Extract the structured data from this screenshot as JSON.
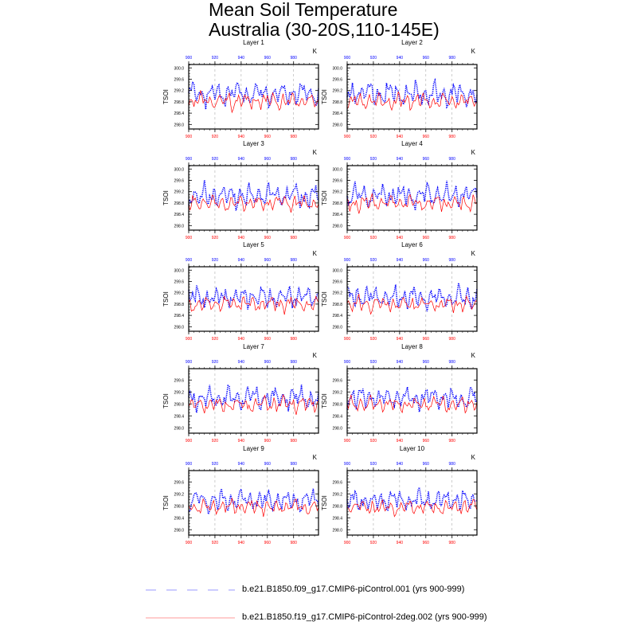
{
  "title": {
    "line1": "Mean Soil Temperature",
    "line2": "Australia (30-20S,110-145E)"
  },
  "colors": {
    "series_f09": "#0000ff",
    "series_f19": "#ff0000",
    "legend_f09": "#9999ff",
    "legend_f19": "#ff9999",
    "grid": "#aaaaaa"
  },
  "legend": [
    {
      "name": "series-f09",
      "label": "b.e21.B1850.f09_g17.CMIP6-piControl.001 (yrs 900-999)",
      "style": "dashed"
    },
    {
      "name": "series-f19",
      "label": "b.e21.B1850.f19_g17.CMIP6-piControl-2deg.002 (yrs 900-999)",
      "style": "solid"
    }
  ],
  "chart_data": [
    {
      "type": "line",
      "title": "Layer 1",
      "ylabel": "TSOI",
      "units": "K",
      "x_range": [
        900,
        999
      ],
      "ylim": [
        297.84,
        300.12
      ],
      "yticks": [
        298.0,
        298.4,
        298.8,
        299.2,
        299.6,
        300.0
      ],
      "yticklabels": [
        "298.0",
        "298.4",
        "298.8",
        "299.2",
        "299.6",
        "300.0"
      ],
      "xticks": [
        900,
        920,
        940,
        960,
        980
      ],
      "xticklabels": [
        "900",
        "920",
        "940",
        "960",
        "980"
      ],
      "series": [
        {
          "name": "b.e21.B1850.f09_g17.CMIP6-piControl.001",
          "mean": 299.08,
          "amp": 0.48,
          "seed": 11
        },
        {
          "name": "b.e21.B1850.f19_g17.CMIP6-piControl-2deg.002",
          "mean": 298.82,
          "amp": 0.34,
          "seed": 23
        }
      ]
    },
    {
      "type": "line",
      "title": "Layer 2",
      "ylabel": "TSOI",
      "units": "K",
      "x_range": [
        900,
        999
      ],
      "ylim": [
        297.84,
        300.12
      ],
      "yticks": [
        298.0,
        298.4,
        298.8,
        299.2,
        299.6,
        300.0
      ],
      "yticklabels": [
        "298.0",
        "298.4",
        "298.8",
        "299.2",
        "299.6",
        "300.0"
      ],
      "xticks": [
        900,
        920,
        940,
        960,
        980
      ],
      "xticklabels": [
        "900",
        "920",
        "940",
        "960",
        "980"
      ],
      "series": [
        {
          "name": "b.e21.B1850.f09_g17.CMIP6-piControl.001",
          "mean": 299.08,
          "amp": 0.48,
          "seed": 12
        },
        {
          "name": "b.e21.B1850.f19_g17.CMIP6-piControl-2deg.002",
          "mean": 298.82,
          "amp": 0.34,
          "seed": 24
        }
      ]
    },
    {
      "type": "line",
      "title": "Layer 3",
      "ylabel": "TSOI",
      "units": "K",
      "x_range": [
        900,
        999
      ],
      "ylim": [
        297.84,
        300.12
      ],
      "yticks": [
        298.0,
        298.4,
        298.8,
        299.2,
        299.6,
        300.0
      ],
      "yticklabels": [
        "298.0",
        "298.4",
        "298.8",
        "299.2",
        "299.6",
        "300.0"
      ],
      "xticks": [
        900,
        920,
        940,
        960,
        980
      ],
      "xticklabels": [
        "900",
        "920",
        "940",
        "960",
        "980"
      ],
      "series": [
        {
          "name": "b.e21.B1850.f09_g17.CMIP6-piControl.001",
          "mean": 299.06,
          "amp": 0.46,
          "seed": 13
        },
        {
          "name": "b.e21.B1850.f19_g17.CMIP6-piControl-2deg.002",
          "mean": 298.8,
          "amp": 0.33,
          "seed": 25
        }
      ]
    },
    {
      "type": "line",
      "title": "Layer 4",
      "ylabel": "TSOI",
      "units": "K",
      "x_range": [
        900,
        999
      ],
      "ylim": [
        297.84,
        300.12
      ],
      "yticks": [
        298.0,
        298.4,
        298.8,
        299.2,
        299.6,
        300.0
      ],
      "yticklabels": [
        "298.0",
        "298.4",
        "298.8",
        "299.2",
        "299.6",
        "300.0"
      ],
      "xticks": [
        900,
        920,
        940,
        960,
        980
      ],
      "xticklabels": [
        "900",
        "920",
        "940",
        "960",
        "980"
      ],
      "series": [
        {
          "name": "b.e21.B1850.f09_g17.CMIP6-piControl.001",
          "mean": 299.06,
          "amp": 0.46,
          "seed": 14
        },
        {
          "name": "b.e21.B1850.f19_g17.CMIP6-piControl-2deg.002",
          "mean": 298.8,
          "amp": 0.33,
          "seed": 26
        }
      ]
    },
    {
      "type": "line",
      "title": "Layer 5",
      "ylabel": "TSOI",
      "units": "K",
      "x_range": [
        900,
        999
      ],
      "ylim": [
        297.84,
        300.12
      ],
      "yticks": [
        298.0,
        298.4,
        298.8,
        299.2,
        299.6,
        300.0
      ],
      "yticklabels": [
        "298.0",
        "298.4",
        "298.8",
        "299.2",
        "299.6",
        "300.0"
      ],
      "xticks": [
        900,
        920,
        940,
        960,
        980
      ],
      "xticklabels": [
        "900",
        "920",
        "940",
        "960",
        "980"
      ],
      "series": [
        {
          "name": "b.e21.B1850.f09_g17.CMIP6-piControl.001",
          "mean": 299.04,
          "amp": 0.44,
          "seed": 15
        },
        {
          "name": "b.e21.B1850.f19_g17.CMIP6-piControl-2deg.002",
          "mean": 298.8,
          "amp": 0.32,
          "seed": 27
        }
      ]
    },
    {
      "type": "line",
      "title": "Layer 6",
      "ylabel": "TSOI",
      "units": "K",
      "x_range": [
        900,
        999
      ],
      "ylim": [
        297.84,
        300.12
      ],
      "yticks": [
        298.0,
        298.4,
        298.8,
        299.2,
        299.6,
        300.0
      ],
      "yticklabels": [
        "298.0",
        "298.4",
        "298.8",
        "299.2",
        "299.6",
        "300.0"
      ],
      "xticks": [
        900,
        920,
        940,
        960,
        980
      ],
      "xticklabels": [
        "900",
        "920",
        "940",
        "960",
        "980"
      ],
      "series": [
        {
          "name": "b.e21.B1850.f09_g17.CMIP6-piControl.001",
          "mean": 299.04,
          "amp": 0.44,
          "seed": 16
        },
        {
          "name": "b.e21.B1850.f19_g17.CMIP6-piControl-2deg.002",
          "mean": 298.8,
          "amp": 0.32,
          "seed": 28
        }
      ]
    },
    {
      "type": "line",
      "title": "Layer 7",
      "ylabel": "TSOI",
      "units": "K",
      "x_range": [
        900,
        999
      ],
      "ylim": [
        297.82,
        299.98
      ],
      "yticks": [
        298.0,
        298.4,
        298.8,
        299.2,
        299.6
      ],
      "yticklabels": [
        "298.0",
        "298.4",
        "298.8",
        "299.2",
        "299.6"
      ],
      "xticks": [
        900,
        920,
        940,
        960,
        980
      ],
      "xticklabels": [
        "900",
        "920",
        "940",
        "960",
        "980"
      ],
      "series": [
        {
          "name": "b.e21.B1850.f09_g17.CMIP6-piControl.001",
          "mean": 299.0,
          "amp": 0.42,
          "seed": 17
        },
        {
          "name": "b.e21.B1850.f19_g17.CMIP6-piControl-2deg.002",
          "mean": 298.78,
          "amp": 0.3,
          "seed": 29
        }
      ]
    },
    {
      "type": "line",
      "title": "Layer 8",
      "ylabel": "TSOI",
      "units": "K",
      "x_range": [
        900,
        999
      ],
      "ylim": [
        297.82,
        299.98
      ],
      "yticks": [
        298.0,
        298.4,
        298.8,
        299.2,
        299.6
      ],
      "yticklabels": [
        "298.0",
        "298.4",
        "298.8",
        "299.2",
        "299.6"
      ],
      "xticks": [
        900,
        920,
        940,
        960,
        980
      ],
      "xticklabels": [
        "900",
        "920",
        "940",
        "960",
        "980"
      ],
      "series": [
        {
          "name": "b.e21.B1850.f09_g17.CMIP6-piControl.001",
          "mean": 299.0,
          "amp": 0.42,
          "seed": 18
        },
        {
          "name": "b.e21.B1850.f19_g17.CMIP6-piControl-2deg.002",
          "mean": 298.78,
          "amp": 0.3,
          "seed": 30
        }
      ]
    },
    {
      "type": "line",
      "title": "Layer 9",
      "ylabel": "TSOI",
      "units": "K",
      "x_range": [
        900,
        999
      ],
      "ylim": [
        297.82,
        299.98
      ],
      "yticks": [
        298.0,
        298.4,
        298.8,
        299.2,
        299.6
      ],
      "yticklabels": [
        "298.0",
        "298.4",
        "298.8",
        "299.2",
        "299.6"
      ],
      "xticks": [
        900,
        920,
        940,
        960,
        980
      ],
      "xticklabels": [
        "900",
        "920",
        "940",
        "960",
        "980"
      ],
      "series": [
        {
          "name": "b.e21.B1850.f09_g17.CMIP6-piControl.001",
          "mean": 298.98,
          "amp": 0.4,
          "seed": 19
        },
        {
          "name": "b.e21.B1850.f19_g17.CMIP6-piControl-2deg.002",
          "mean": 298.76,
          "amp": 0.29,
          "seed": 31
        }
      ]
    },
    {
      "type": "line",
      "title": "Layer 10",
      "ylabel": "TSOI",
      "units": "K",
      "x_range": [
        900,
        999
      ],
      "ylim": [
        297.82,
        299.98
      ],
      "yticks": [
        298.0,
        298.4,
        298.8,
        299.2,
        299.6
      ],
      "yticklabels": [
        "298.0",
        "298.4",
        "298.8",
        "299.2",
        "299.6"
      ],
      "xticks": [
        900,
        920,
        940,
        960,
        980
      ],
      "xticklabels": [
        "900",
        "920",
        "940",
        "960",
        "980"
      ],
      "series": [
        {
          "name": "b.e21.B1850.f09_g17.CMIP6-piControl.001",
          "mean": 298.98,
          "amp": 0.4,
          "seed": 20
        },
        {
          "name": "b.e21.B1850.f19_g17.CMIP6-piControl-2deg.002",
          "mean": 298.76,
          "amp": 0.29,
          "seed": 32
        }
      ]
    }
  ]
}
